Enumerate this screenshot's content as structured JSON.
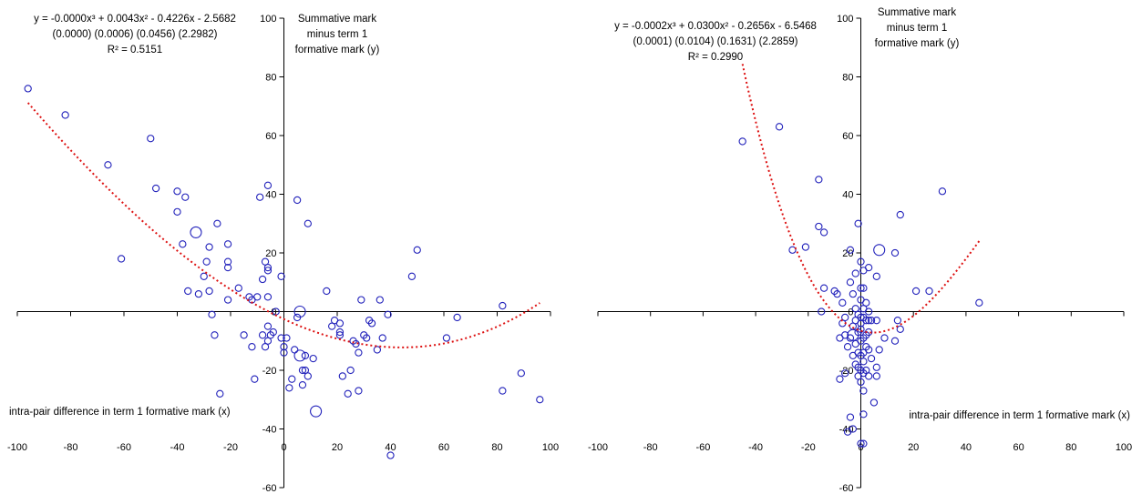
{
  "chart_data": [
    {
      "type": "scatter",
      "title": "",
      "xlabel": "intra-pair difference in term 1 formative mark (x)",
      "ylabel_lines": [
        "Summative mark",
        "minus term 1",
        "formative mark (y)"
      ],
      "xlim": [
        -100,
        100
      ],
      "ylim": [
        -60,
        100
      ],
      "xticks": [
        -100,
        -80,
        -60,
        -40,
        -20,
        0,
        20,
        40,
        60,
        80,
        100
      ],
      "yticks": [
        -60,
        -40,
        -20,
        0,
        20,
        40,
        60,
        80,
        100
      ],
      "grid": false,
      "legend": "none",
      "marker_color": "#2222bb",
      "trend_color": "#dd1111",
      "equation_lines": [
        "y = -0.0000x³ + 0.0043x² - 0.4226x - 2.5682",
        "(0.0000)   (0.0006)   (0.0456)   (2.2982)",
        "R² = 0.5151"
      ],
      "trend_coefficients": [
        -2.5682,
        -0.4226,
        0.0043,
        7.3e-06
      ],
      "trend_xrange": [
        -96,
        96
      ],
      "points": [
        [
          -96,
          76,
          1
        ],
        [
          -82,
          67,
          1
        ],
        [
          -66,
          50,
          1
        ],
        [
          -61,
          18,
          1
        ],
        [
          -50,
          59,
          1
        ],
        [
          -48,
          42,
          1
        ],
        [
          -40,
          41,
          1
        ],
        [
          -40,
          34,
          1
        ],
        [
          -38,
          23,
          1
        ],
        [
          -37,
          39,
          1
        ],
        [
          -36,
          7,
          1
        ],
        [
          -33,
          27,
          2
        ],
        [
          -32,
          6,
          1
        ],
        [
          -30,
          12,
          1
        ],
        [
          -29,
          17,
          1
        ],
        [
          -28,
          22,
          1
        ],
        [
          -28,
          7,
          1
        ],
        [
          -27,
          -1,
          1
        ],
        [
          -26,
          -8,
          1
        ],
        [
          -25,
          30,
          1
        ],
        [
          -24,
          -28,
          1
        ],
        [
          -21,
          23,
          1
        ],
        [
          -21,
          17,
          1
        ],
        [
          -21,
          15,
          1
        ],
        [
          -21,
          4,
          1
        ],
        [
          -17,
          8,
          1
        ],
        [
          -15,
          -8,
          1
        ],
        [
          -13,
          5,
          1
        ],
        [
          -12,
          4,
          1
        ],
        [
          -12,
          -12,
          1
        ],
        [
          -11,
          -23,
          1
        ],
        [
          -10,
          5,
          1
        ],
        [
          -9,
          39,
          1
        ],
        [
          -8,
          11,
          1
        ],
        [
          -8,
          -8,
          1
        ],
        [
          -7,
          17,
          1
        ],
        [
          -7,
          -12,
          1
        ],
        [
          -6,
          43,
          1
        ],
        [
          -6,
          15,
          1
        ],
        [
          -6,
          14,
          1
        ],
        [
          -6,
          5,
          1
        ],
        [
          -6,
          -5,
          1
        ],
        [
          -6,
          -10,
          1
        ],
        [
          -5,
          -8,
          1
        ],
        [
          -4,
          -7,
          1
        ],
        [
          -3,
          0,
          1
        ],
        [
          -1,
          12,
          1
        ],
        [
          -1,
          -9,
          1
        ],
        [
          0,
          -12,
          1
        ],
        [
          0,
          -14,
          1
        ],
        [
          1,
          -9,
          1
        ],
        [
          2,
          -26,
          1
        ],
        [
          3,
          -23,
          1
        ],
        [
          4,
          -13,
          1
        ],
        [
          5,
          38,
          1
        ],
        [
          5,
          -2,
          1
        ],
        [
          6,
          0,
          2
        ],
        [
          6,
          -15,
          2
        ],
        [
          7,
          -20,
          1
        ],
        [
          7,
          -25,
          1
        ],
        [
          8,
          -15,
          1
        ],
        [
          8,
          -20,
          1
        ],
        [
          9,
          30,
          1
        ],
        [
          9,
          -22,
          1
        ],
        [
          11,
          -16,
          1
        ],
        [
          12,
          -34,
          2
        ],
        [
          16,
          7,
          1
        ],
        [
          18,
          -5,
          1
        ],
        [
          19,
          -3,
          1
        ],
        [
          21,
          -4,
          1
        ],
        [
          21,
          -7,
          1
        ],
        [
          21,
          -8,
          1
        ],
        [
          22,
          -22,
          1
        ],
        [
          24,
          -28,
          1
        ],
        [
          25,
          -20,
          1
        ],
        [
          26,
          -10,
          1
        ],
        [
          27,
          -11,
          1
        ],
        [
          28,
          -14,
          1
        ],
        [
          28,
          -27,
          1
        ],
        [
          29,
          4,
          1
        ],
        [
          30,
          -8,
          1
        ],
        [
          31,
          -9,
          1
        ],
        [
          32,
          -3,
          1
        ],
        [
          33,
          -4,
          1
        ],
        [
          35,
          -13,
          1
        ],
        [
          36,
          4,
          1
        ],
        [
          37,
          -9,
          1
        ],
        [
          39,
          -1,
          1
        ],
        [
          40,
          -49,
          1
        ],
        [
          48,
          12,
          1
        ],
        [
          50,
          21,
          1
        ],
        [
          61,
          -9,
          1
        ],
        [
          65,
          -2,
          1
        ],
        [
          82,
          2,
          1
        ],
        [
          82,
          -27,
          1
        ],
        [
          89,
          -21,
          1
        ],
        [
          96,
          -30,
          1
        ]
      ]
    },
    {
      "type": "scatter",
      "title": "",
      "xlabel": "intra-pair difference in term 1 formative mark (x)",
      "ylabel_lines": [
        "Summative mark",
        "minus term 1",
        "formative mark (y)"
      ],
      "xlim": [
        -100,
        100
      ],
      "ylim": [
        -60,
        100
      ],
      "xticks": [
        -100,
        -80,
        -60,
        -40,
        -20,
        0,
        20,
        40,
        60,
        80,
        100
      ],
      "yticks": [
        -60,
        -40,
        -20,
        0,
        20,
        40,
        60,
        80,
        100
      ],
      "grid": false,
      "legend": "none",
      "marker_color": "#2222bb",
      "trend_color": "#dd1111",
      "equation_lines": [
        "y = -0.0002x³ + 0.0300x² - 0.2656x - 6.5468",
        "(0.0001)   (0.0104)   (0.1631)   (2.2859)",
        "R² = 0.2990"
      ],
      "trend_coefficients": [
        -6.5468,
        -0.2656,
        0.03,
        -0.0002
      ],
      "trend_xrange": [
        -45,
        45
      ],
      "points": [
        [
          -45,
          58,
          1
        ],
        [
          -31,
          63,
          1
        ],
        [
          -26,
          21,
          1
        ],
        [
          -21,
          22,
          1
        ],
        [
          -16,
          45,
          1
        ],
        [
          -16,
          29,
          1
        ],
        [
          -15,
          0,
          1
        ],
        [
          -14,
          8,
          1
        ],
        [
          -14,
          27,
          1
        ],
        [
          -10,
          7,
          1
        ],
        [
          -9,
          6,
          1
        ],
        [
          -8,
          -23,
          1
        ],
        [
          -8,
          -9,
          1
        ],
        [
          -7,
          3,
          1
        ],
        [
          -7,
          -4,
          1
        ],
        [
          -6,
          -2,
          1
        ],
        [
          -6,
          -8,
          1
        ],
        [
          -6,
          -21,
          1
        ],
        [
          -5,
          -41,
          1
        ],
        [
          -5,
          -12,
          1
        ],
        [
          -4,
          21,
          1
        ],
        [
          -4,
          10,
          1
        ],
        [
          -4,
          -9,
          1
        ],
        [
          -4,
          -36,
          1
        ],
        [
          -3,
          6,
          1
        ],
        [
          -3,
          -5,
          1
        ],
        [
          -3,
          -8,
          2
        ],
        [
          -3,
          -15,
          1
        ],
        [
          -3,
          -40,
          1
        ],
        [
          -2,
          13,
          1
        ],
        [
          -2,
          1,
          1
        ],
        [
          -2,
          -3,
          1
        ],
        [
          -2,
          -11,
          1
        ],
        [
          -2,
          -18,
          1
        ],
        [
          -1,
          30,
          1
        ],
        [
          -1,
          -1,
          1
        ],
        [
          -1,
          -7,
          1
        ],
        [
          -1,
          -14,
          1
        ],
        [
          -1,
          -19,
          1
        ],
        [
          -1,
          -22,
          1
        ],
        [
          0,
          17,
          1
        ],
        [
          0,
          8,
          1
        ],
        [
          0,
          4,
          1
        ],
        [
          0,
          -2,
          1
        ],
        [
          0,
          -4,
          1
        ],
        [
          0,
          -6,
          1
        ],
        [
          0,
          -10,
          1
        ],
        [
          0,
          -15,
          1
        ],
        [
          0,
          -20,
          1
        ],
        [
          0,
          -24,
          1
        ],
        [
          0,
          -45,
          1
        ],
        [
          1,
          14,
          1
        ],
        [
          1,
          8,
          1
        ],
        [
          1,
          1,
          1
        ],
        [
          1,
          -2,
          1
        ],
        [
          1,
          -9,
          1
        ],
        [
          1,
          -14,
          1
        ],
        [
          1,
          -17,
          1
        ],
        [
          1,
          -21,
          1
        ],
        [
          1,
          -27,
          1
        ],
        [
          1,
          -35,
          1
        ],
        [
          1,
          -45,
          1
        ],
        [
          2,
          3,
          1
        ],
        [
          2,
          -3,
          1
        ],
        [
          2,
          -8,
          1
        ],
        [
          2,
          -12,
          1
        ],
        [
          2,
          -20,
          1
        ],
        [
          3,
          15,
          1
        ],
        [
          3,
          0,
          1
        ],
        [
          3,
          -3,
          1
        ],
        [
          3,
          -7,
          1
        ],
        [
          3,
          -13,
          1
        ],
        [
          3,
          -22,
          1
        ],
        [
          4,
          -3,
          1
        ],
        [
          4,
          -16,
          1
        ],
        [
          5,
          -31,
          1
        ],
        [
          6,
          12,
          1
        ],
        [
          6,
          -3,
          1
        ],
        [
          6,
          -19,
          1
        ],
        [
          6,
          -22,
          1
        ],
        [
          7,
          21,
          2
        ],
        [
          7,
          -13,
          1
        ],
        [
          9,
          -9,
          1
        ],
        [
          13,
          20,
          1
        ],
        [
          13,
          -10,
          1
        ],
        [
          14,
          -3,
          1
        ],
        [
          15,
          33,
          1
        ],
        [
          15,
          -6,
          1
        ],
        [
          21,
          7,
          1
        ],
        [
          26,
          7,
          1
        ],
        [
          31,
          41,
          1
        ],
        [
          45,
          3,
          1
        ]
      ]
    }
  ]
}
